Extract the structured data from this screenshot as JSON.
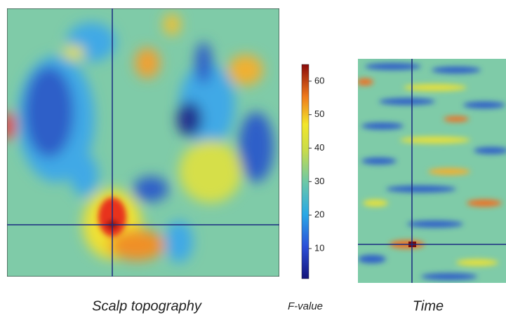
{
  "panels": [
    {
      "caption": "Scalp topography"
    },
    {
      "caption": "Time"
    }
  ],
  "colorbar": {
    "label": "F-value",
    "lim": [
      1,
      65
    ],
    "ticks": [
      10,
      20,
      30,
      40,
      50,
      60
    ]
  }
}
